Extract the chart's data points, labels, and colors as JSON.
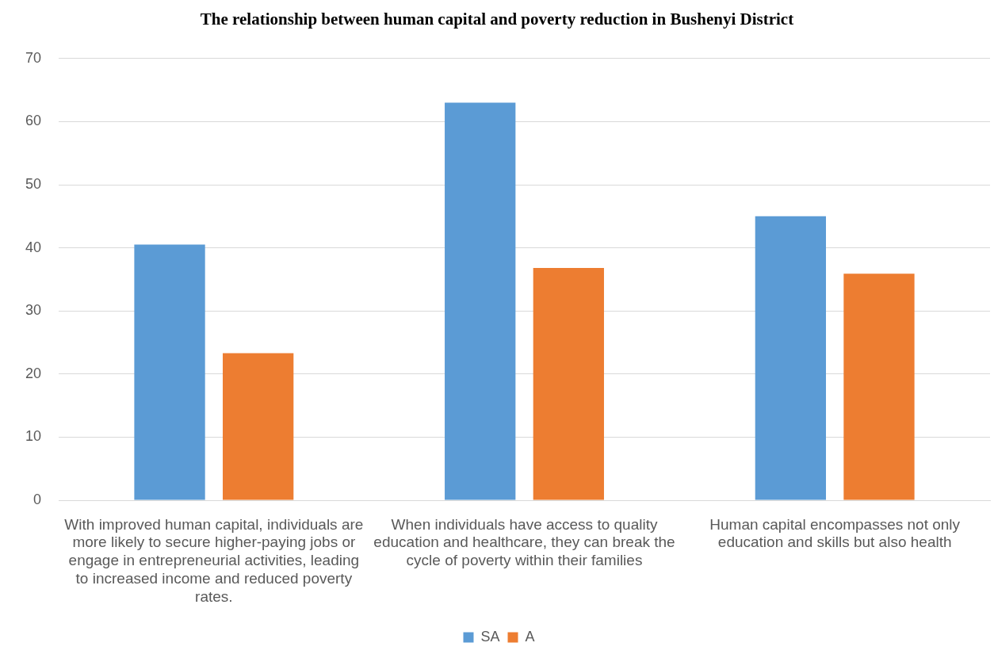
{
  "chart_data": {
    "type": "bar",
    "title": "The relationship between human capital and poverty reduction in Bushenyi District",
    "categories": [
      "With improved human capital, individuals are more likely to secure higher-paying jobs or engage in entrepreneurial activities, leading to increased income and reduced poverty rates.",
      "When individuals have access to quality education and healthcare, they can break the cycle of poverty within their families",
      "Human capital encompasses not only education and skills but also health"
    ],
    "series": [
      {
        "name": "SA",
        "color": "#5b9bd5",
        "values": [
          40.5,
          63,
          45
        ]
      },
      {
        "name": "A",
        "color": "#ed7d31",
        "values": [
          23.3,
          36.8,
          35.9
        ]
      }
    ],
    "ylim": [
      0,
      70
    ],
    "yticks": [
      0,
      10,
      20,
      30,
      40,
      50,
      60,
      70
    ],
    "grid": "y",
    "legend": "bottom"
  }
}
